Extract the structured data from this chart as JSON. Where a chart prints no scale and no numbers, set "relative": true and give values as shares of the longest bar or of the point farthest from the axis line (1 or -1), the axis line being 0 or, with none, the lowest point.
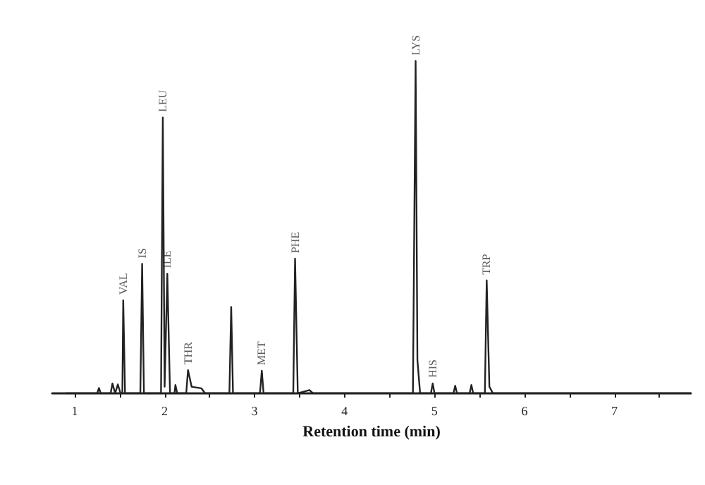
{
  "chart_data": {
    "type": "line",
    "relative": true,
    "xlabel": "Retention time (min)",
    "xlim": [
      0.75,
      7.85
    ],
    "xticks": [
      1,
      {
        "value": 1.5,
        "label": null
      },
      2,
      {
        "value": 2.5,
        "label": null
      },
      3,
      {
        "value": 3.5,
        "label": null
      },
      4,
      {
        "value": 4.5,
        "label": null
      },
      5,
      {
        "value": 5.5,
        "label": null
      },
      6,
      {
        "value": 6.5,
        "label": null
      },
      7,
      {
        "value": 7.5,
        "label": null
      }
    ],
    "tick_labels": "x",
    "grid": false,
    "marker": "none",
    "line_style": "solid",
    "series": [
      {
        "color": "#222222",
        "x": [
          0.9,
          1.25,
          1.27,
          1.29,
          1.4,
          1.42,
          1.45,
          1.48,
          1.51,
          1.53,
          1.54,
          1.56,
          1.73,
          1.75,
          1.77,
          1.96,
          1.98,
          2.0,
          2.03,
          2.06,
          2.11,
          2.12,
          2.14,
          2.24,
          2.26,
          2.3,
          2.41,
          2.45,
          2.72,
          2.74,
          2.76,
          3.06,
          3.08,
          3.1,
          3.43,
          3.45,
          3.48,
          3.61,
          3.65,
          4.76,
          4.79,
          4.81,
          4.84,
          4.96,
          4.98,
          5.0,
          5.21,
          5.23,
          5.25,
          5.39,
          5.41,
          5.43,
          5.56,
          5.58,
          5.61,
          5.65,
          7.85
        ],
        "values": [
          0,
          0,
          0.016,
          0,
          0,
          0.03,
          0,
          0.027,
          0,
          0,
          0.28,
          0,
          0,
          0.39,
          0,
          0,
          0.83,
          0.02,
          0.36,
          0,
          0,
          0.025,
          0,
          0,
          0.07,
          0.02,
          0.015,
          0,
          0,
          0.26,
          0,
          0,
          0.068,
          0,
          0,
          0.405,
          0,
          0.01,
          0,
          0,
          1,
          0.1,
          0,
          0,
          0.03,
          0,
          0,
          0.023,
          0,
          0,
          0.025,
          0,
          0,
          0.34,
          0.02,
          0,
          0
        ]
      }
    ],
    "annotations": [
      {
        "text": "VAL",
        "x": 1.54,
        "y": 0.28
      },
      {
        "text": "IS",
        "x": 1.75,
        "y": 0.39
      },
      {
        "text": "LEU",
        "x": 1.98,
        "y": 0.83
      },
      {
        "text": "ILE",
        "x": 2.03,
        "y": 0.36
      },
      {
        "text": "THR",
        "x": 2.26,
        "y": 0.07
      },
      {
        "text": "MET",
        "x": 3.08,
        "y": 0.068
      },
      {
        "text": "PHE",
        "x": 3.45,
        "y": 0.405
      },
      {
        "text": "LYS",
        "x": 4.79,
        "y": 1
      },
      {
        "text": "HIS",
        "x": 4.98,
        "y": 0.03
      },
      {
        "text": "TRP",
        "x": 5.58,
        "y": 0.34
      }
    ]
  }
}
